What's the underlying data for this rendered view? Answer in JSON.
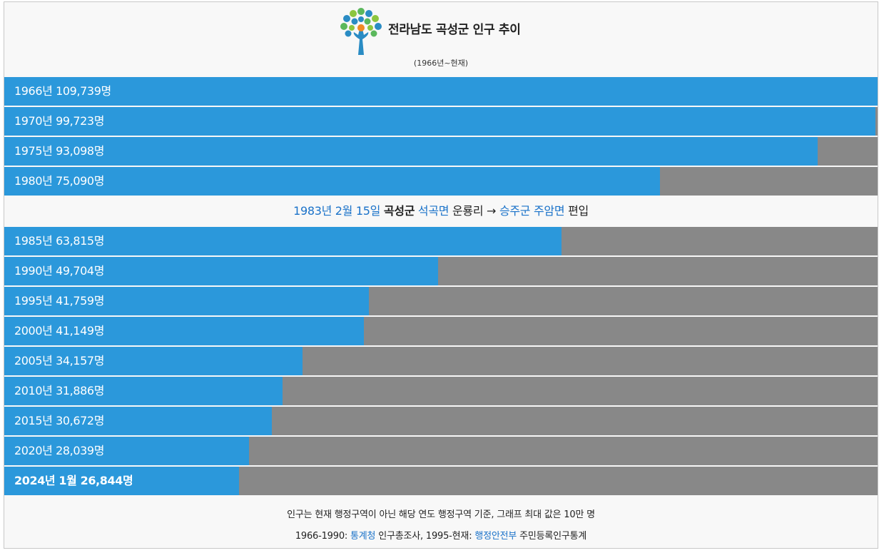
{
  "header": {
    "title": "전라남도 곡성군 인구 추이",
    "subtitle": "(1966년~현재)",
    "logo_icon": "tree-logo-icon"
  },
  "chart_data": {
    "type": "bar",
    "orientation": "horizontal",
    "max_value": 100000,
    "categories": [
      "1966년",
      "1970년",
      "1975년",
      "1980년",
      "1985년",
      "1990년",
      "1995년",
      "2000년",
      "2005년",
      "2010년",
      "2015년",
      "2020년",
      "2024년 1월"
    ],
    "values": [
      109739,
      99723,
      93098,
      75090,
      63815,
      49704,
      41759,
      41149,
      34157,
      31886,
      30672,
      28039,
      26844
    ],
    "labels": [
      "1966년 109,739명",
      "1970년 99,723명",
      "1975년 93,098명",
      "1980년 75,090명",
      "1985년 63,815명",
      "1990년 49,704명",
      "1995년 41,759명",
      "2000년 41,149명",
      "2005년 34,157명",
      "2010년 31,886명",
      "2015년 30,672명",
      "2020년 28,039명",
      "2024년 1월 26,844명"
    ],
    "bar_color": "#2b98db",
    "track_color": "#888888"
  },
  "event_note": {
    "date": "1983년 2월 15일",
    "county": "곡성군",
    "from_myeon": "석곡면",
    "village": "운룡리",
    "arrow": "→",
    "to_county": "승주군",
    "to_myeon": "주암면",
    "action": "편입"
  },
  "footer": {
    "line1": "인구는 현재 행정구역이 아닌 해당 연도 행정구역 기준, 그래프 최대 값은 10만 명",
    "line2_prefix": "1966-1990:",
    "source1": "통계청",
    "source1_desc": "인구총조사, 1995-현재:",
    "source2": "행정안전부",
    "source2_desc": "주민등록인구통계"
  },
  "colors": {
    "link": "#1a72c9"
  }
}
